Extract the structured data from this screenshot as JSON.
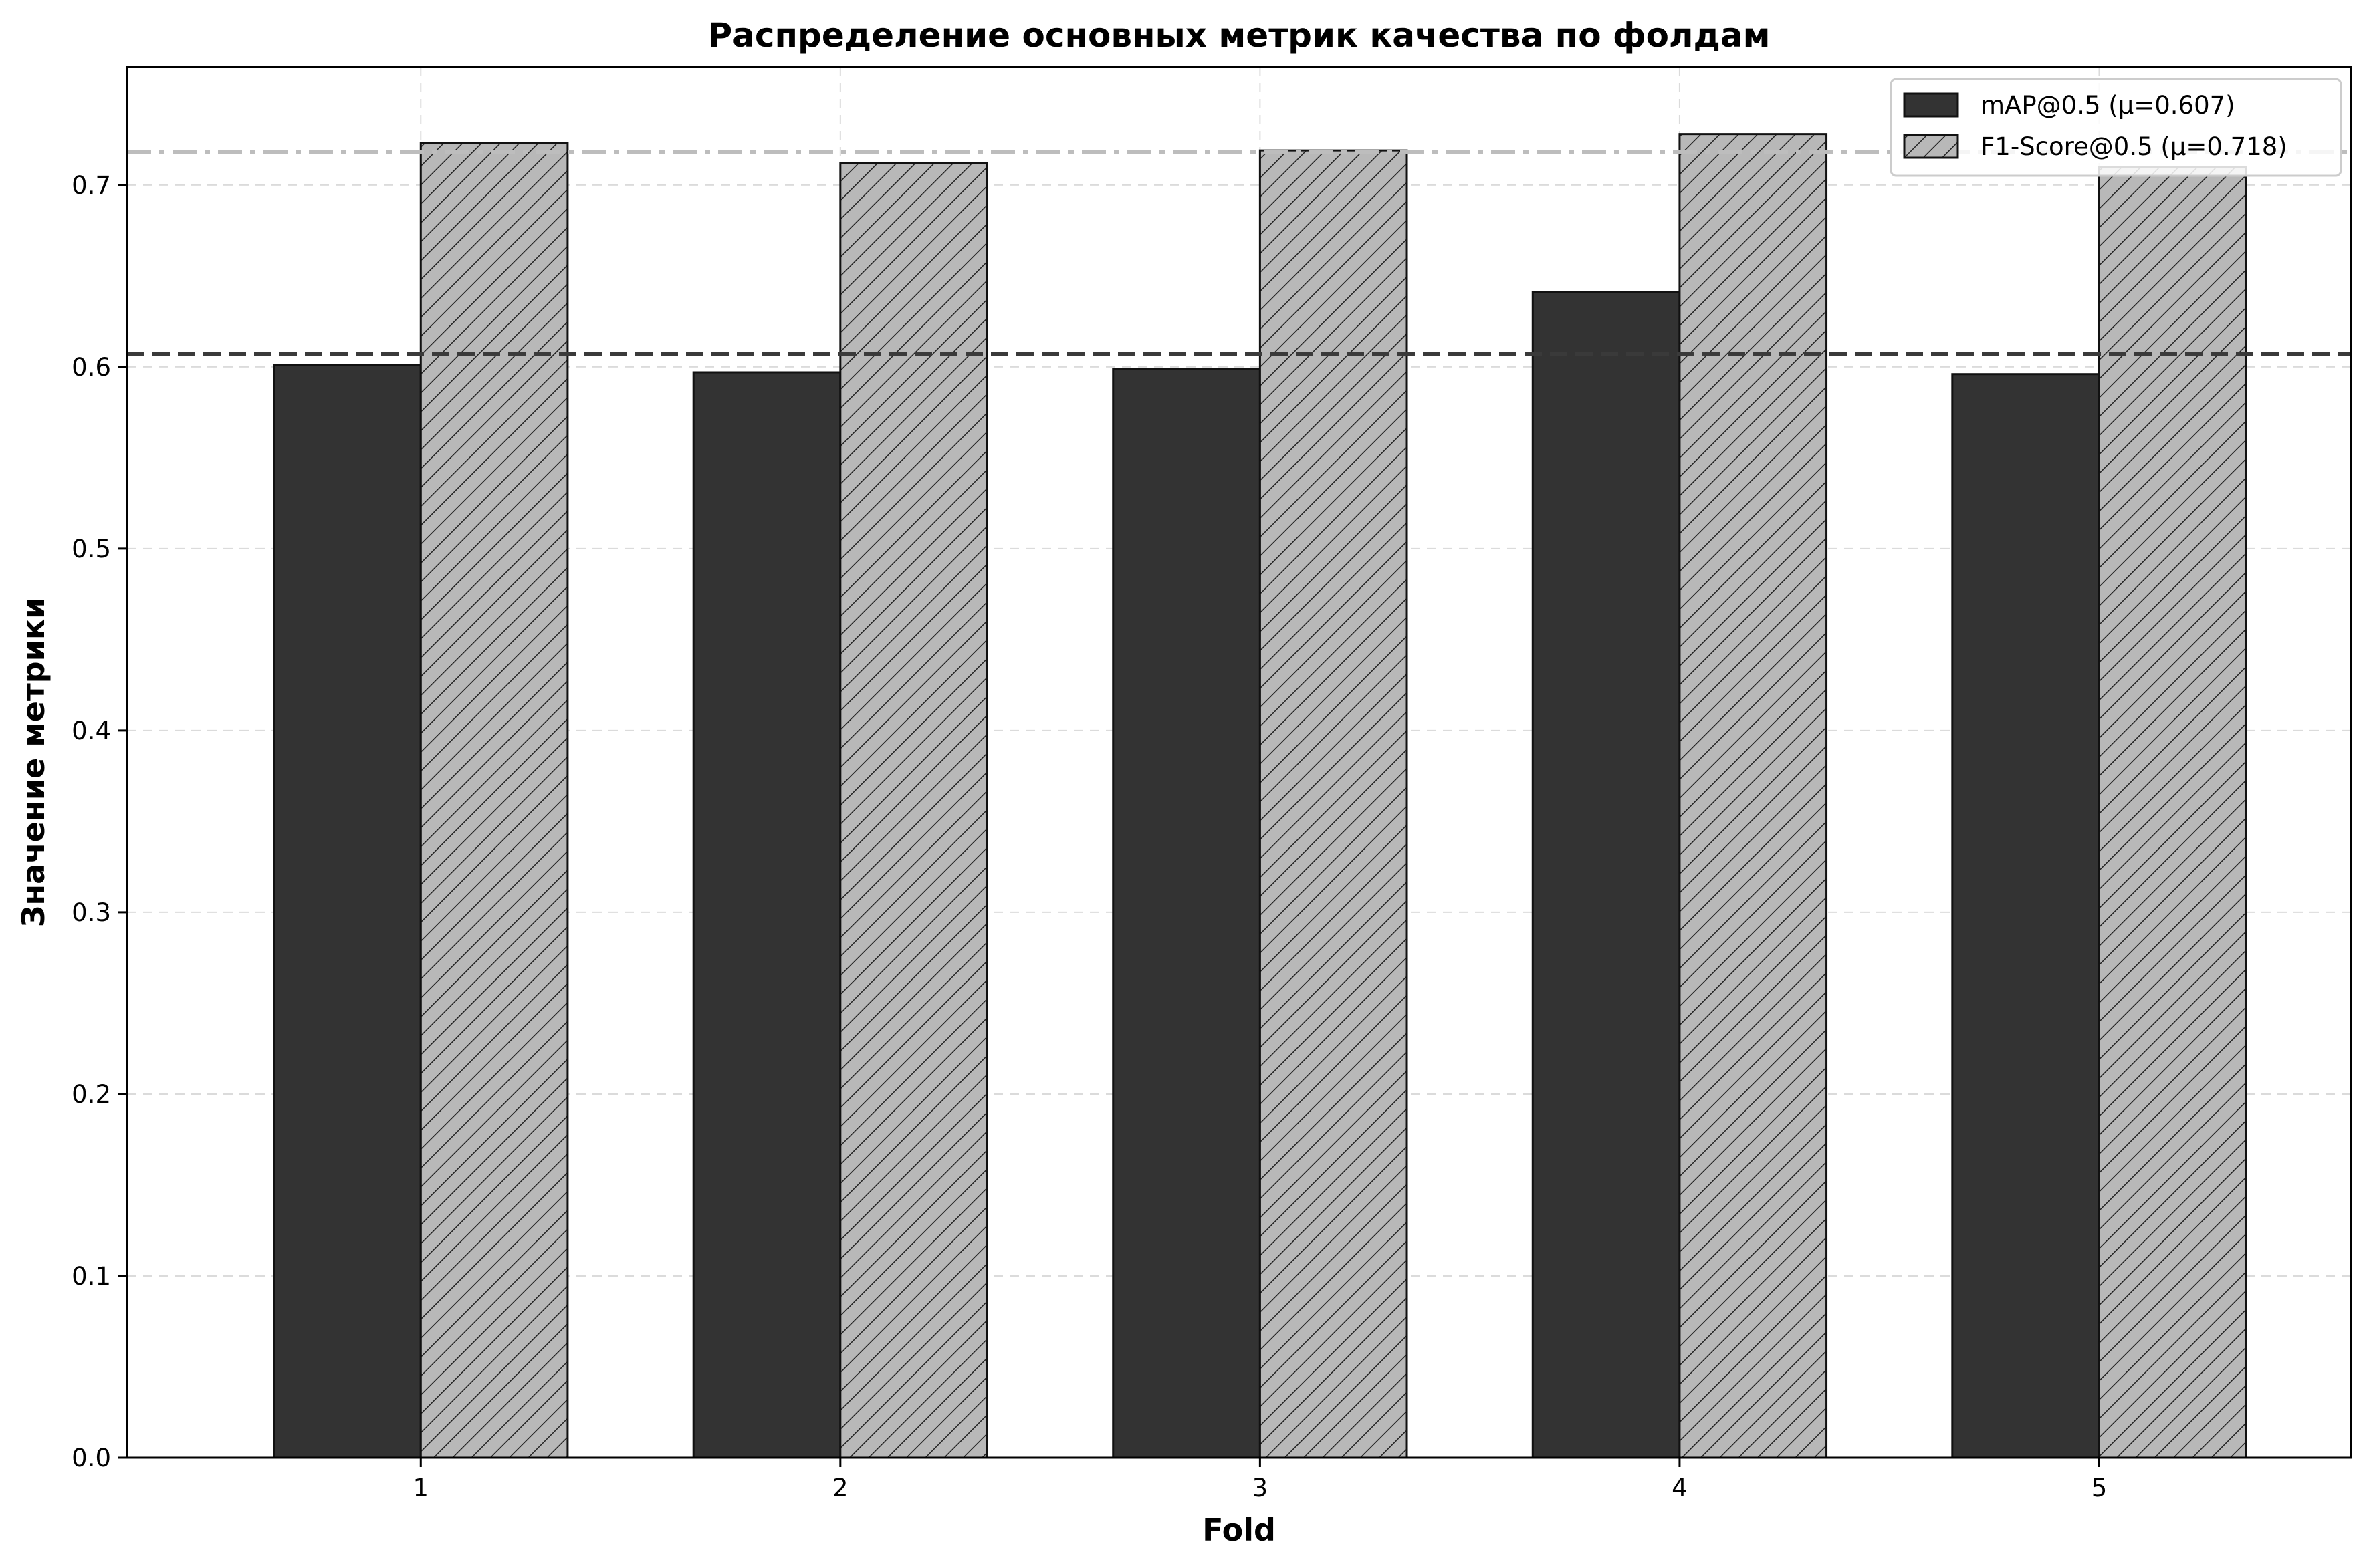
{
  "chart_data": {
    "type": "bar",
    "title": "Распределение основных метрик качества по фолдам",
    "xlabel": "Fold",
    "ylabel": "Значение метрики",
    "categories": [
      "1",
      "2",
      "3",
      "4",
      "5"
    ],
    "ylim": [
      0,
      0.765
    ],
    "yticks": [
      0.0,
      0.1,
      0.2,
      0.3,
      0.4,
      0.5,
      0.6,
      0.7
    ],
    "ytick_labels": [
      "0.0",
      "0.1",
      "0.2",
      "0.3",
      "0.4",
      "0.5",
      "0.6",
      "0.7"
    ],
    "grid": true,
    "legend_position": "top-right",
    "series": [
      {
        "name": "mAP@0.5 (μ=0.607)",
        "values": [
          0.601,
          0.597,
          0.599,
          0.641,
          0.596
        ],
        "color": "#333333",
        "hatch": false,
        "mean": 0.607,
        "mean_line_color": "#3a3a3a",
        "mean_line_style": "dashed"
      },
      {
        "name": "F1-Score@0.5 (μ=0.718)",
        "values": [
          0.723,
          0.712,
          0.719,
          0.728,
          0.71
        ],
        "color": "#b8b8b8",
        "hatch": true,
        "mean": 0.718,
        "mean_line_color": "#bdbdbd",
        "mean_line_style": "dashdot"
      }
    ]
  }
}
